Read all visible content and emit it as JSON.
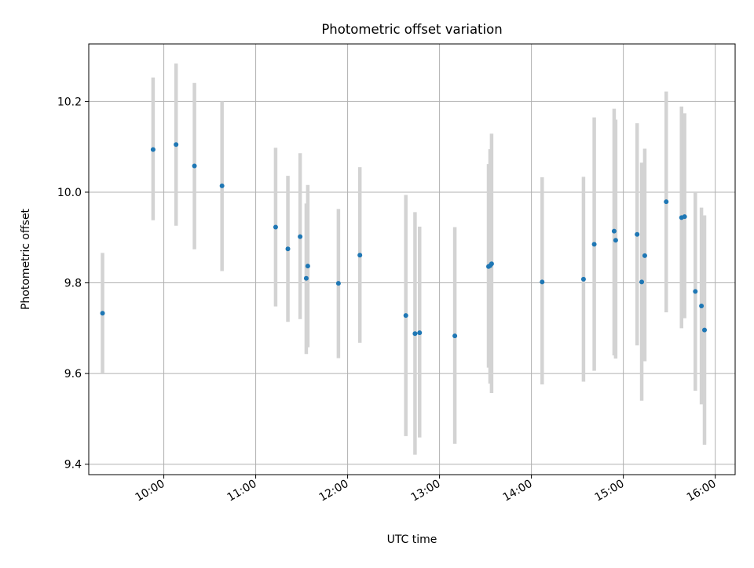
{
  "chart_data": {
    "type": "scatter",
    "title": "Photometric offset variation",
    "xlabel": "UTC time",
    "ylabel": "Photometric offset",
    "x_ticks": [
      "10:00",
      "11:00",
      "12:00",
      "13:00",
      "14:00",
      "15:00",
      "16:00"
    ],
    "y_ticks": [
      "9.4",
      "9.6",
      "9.8",
      "10.0",
      "10.2"
    ],
    "xlim": [
      "09:11",
      "16:13"
    ],
    "ylim": [
      9.377,
      10.327
    ],
    "grid": true,
    "colors": {
      "point": "#1f77b4",
      "errorbar": "#d3d3d3",
      "grid": "#b0b0b0"
    },
    "points": [
      {
        "t": "09:20",
        "y": 9.733,
        "lo": 9.6,
        "hi": 9.866
      },
      {
        "t": "09:53",
        "y": 10.094,
        "lo": 9.938,
        "hi": 10.253
      },
      {
        "t": "10:08",
        "y": 10.105,
        "lo": 9.926,
        "hi": 10.284
      },
      {
        "t": "10:20",
        "y": 10.058,
        "lo": 9.874,
        "hi": 10.241
      },
      {
        "t": "10:38",
        "y": 10.014,
        "lo": 9.826,
        "hi": 10.2
      },
      {
        "t": "11:13",
        "y": 9.923,
        "lo": 9.748,
        "hi": 10.098
      },
      {
        "t": "11:21",
        "y": 9.875,
        "lo": 9.714,
        "hi": 10.036
      },
      {
        "t": "11:29",
        "y": 9.902,
        "lo": 9.72,
        "hi": 10.086
      },
      {
        "t": "11:34",
        "y": 9.837,
        "lo": 9.658,
        "hi": 10.016
      },
      {
        "t": "11:33",
        "y": 9.81,
        "lo": 9.643,
        "hi": 9.975
      },
      {
        "t": "11:54",
        "y": 9.799,
        "lo": 9.634,
        "hi": 9.963
      },
      {
        "t": "12:08",
        "y": 9.861,
        "lo": 9.668,
        "hi": 10.055
      },
      {
        "t": "12:38",
        "y": 9.728,
        "lo": 9.462,
        "hi": 9.994
      },
      {
        "t": "12:44",
        "y": 9.688,
        "lo": 9.421,
        "hi": 9.956
      },
      {
        "t": "12:47",
        "y": 9.69,
        "lo": 9.459,
        "hi": 9.924
      },
      {
        "t": "13:10",
        "y": 9.683,
        "lo": 9.445,
        "hi": 9.923
      },
      {
        "t": "13:32",
        "y": 9.836,
        "lo": 9.613,
        "hi": 10.062
      },
      {
        "t": "13:33",
        "y": 9.838,
        "lo": 9.578,
        "hi": 10.095
      },
      {
        "t": "13:34",
        "y": 9.842,
        "lo": 9.557,
        "hi": 10.129
      },
      {
        "t": "14:07",
        "y": 9.802,
        "lo": 9.576,
        "hi": 10.033
      },
      {
        "t": "14:34",
        "y": 9.808,
        "lo": 9.582,
        "hi": 10.034
      },
      {
        "t": "14:41",
        "y": 9.885,
        "lo": 9.606,
        "hi": 10.165
      },
      {
        "t": "14:54",
        "y": 9.914,
        "lo": 9.64,
        "hi": 10.184
      },
      {
        "t": "14:55",
        "y": 9.894,
        "lo": 9.633,
        "hi": 10.16
      },
      {
        "t": "15:09",
        "y": 9.907,
        "lo": 9.662,
        "hi": 10.152
      },
      {
        "t": "15:12",
        "y": 9.802,
        "lo": 9.54,
        "hi": 10.065
      },
      {
        "t": "15:14",
        "y": 9.86,
        "lo": 9.627,
        "hi": 10.096
      },
      {
        "t": "15:28",
        "y": 9.979,
        "lo": 9.735,
        "hi": 10.222
      },
      {
        "t": "15:38",
        "y": 9.944,
        "lo": 9.7,
        "hi": 10.189
      },
      {
        "t": "15:40",
        "y": 9.946,
        "lo": 9.722,
        "hi": 10.174
      },
      {
        "t": "15:47",
        "y": 9.781,
        "lo": 9.562,
        "hi": 10.0
      },
      {
        "t": "15:51",
        "y": 9.749,
        "lo": 9.532,
        "hi": 9.966
      },
      {
        "t": "15:53",
        "y": 9.696,
        "lo": 9.443,
        "hi": 9.949
      }
    ]
  }
}
